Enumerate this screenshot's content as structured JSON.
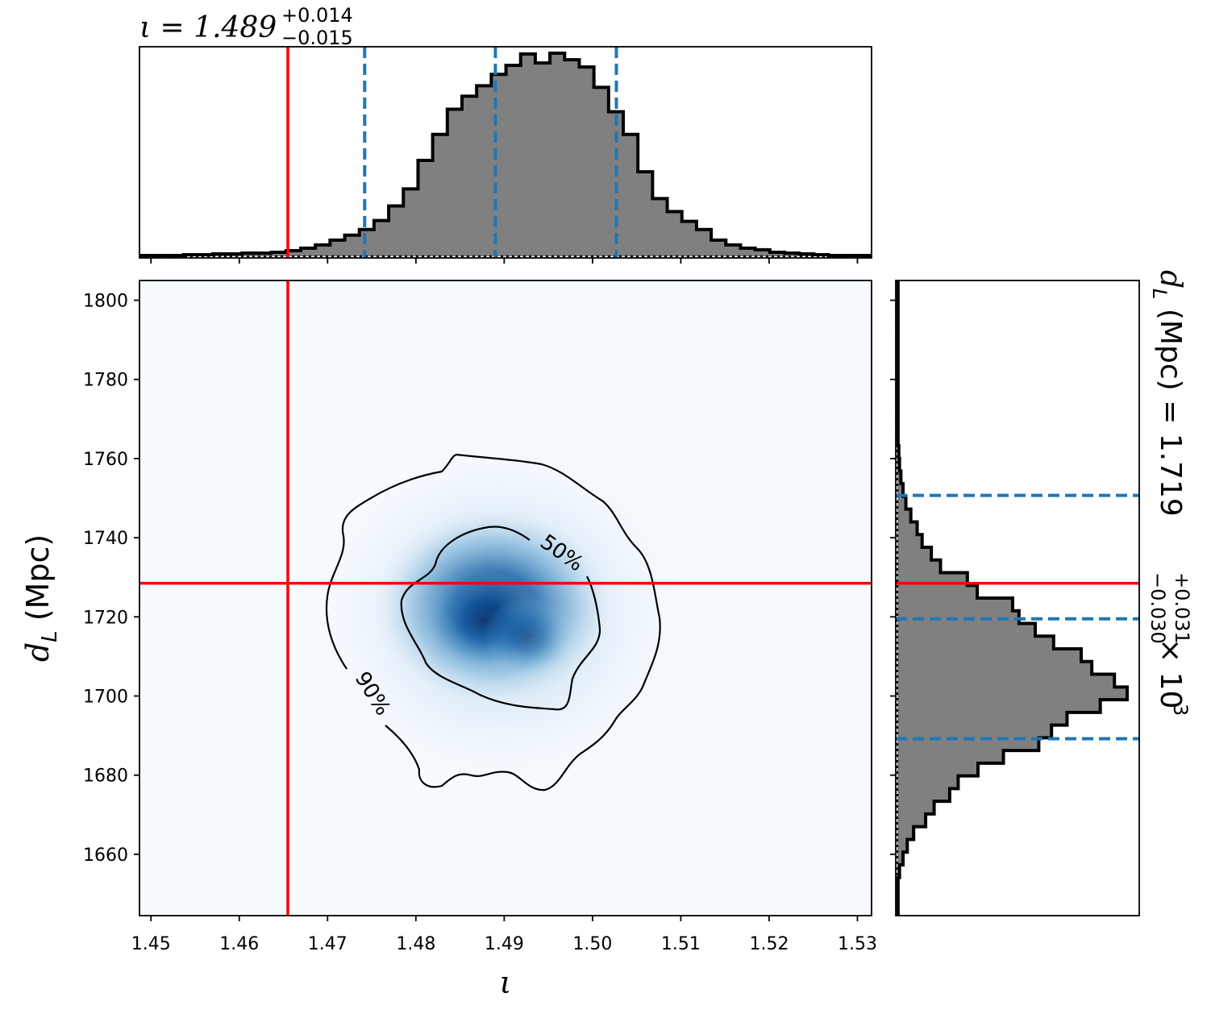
{
  "chart_data": {
    "type": "corner",
    "x": {
      "label": "ι",
      "ticks": [
        "1.45",
        "1.46",
        "1.47",
        "1.48",
        "1.49",
        "1.50",
        "1.51",
        "1.52",
        "1.53"
      ],
      "range": [
        1.4487,
        1.5316
      ],
      "truth": 1.4655,
      "median": 1.489,
      "quantiles": [
        1.4742,
        1.5027
      ],
      "title_prefix": "ι = 1.489",
      "title_sup": "+0.014",
      "title_sub": "−0.015"
    },
    "y": {
      "label_main": "d",
      "label_sub": "L",
      "label_unit": " (Mpc)",
      "ticks": [
        "1660",
        "1680",
        "1700",
        "1720",
        "1740",
        "1760",
        "1780",
        "1800"
      ],
      "range": [
        1644.5,
        1805.0
      ],
      "truth": 1728.5,
      "median": 1719.5,
      "quantiles": [
        1689.2,
        1750.7
      ],
      "title_prefix": "d",
      "title_sub_L": "L",
      "title_mid": " (Mpc) = 1.719",
      "title_sup": "+0.031",
      "title_sub": "−0.030",
      "title_suffix": " × 10",
      "title_exp": "3"
    },
    "hist_x": {
      "edges_start": 1.4487,
      "bin_width": 0.00166,
      "counts": [
        1,
        1,
        1,
        2,
        2,
        3,
        3,
        4,
        4,
        5,
        7,
        10,
        14,
        20,
        26,
        33,
        44,
        62,
        83,
        118,
        150,
        181,
        197,
        210,
        224,
        235,
        249,
        238,
        250,
        242,
        233,
        208,
        178,
        150,
        104,
        71,
        55,
        43,
        33,
        20,
        14,
        10,
        8,
        5,
        4,
        3,
        2,
        1,
        1,
        1
      ]
    },
    "hist_y": {
      "edges_start": 1644.5,
      "bin_width": 3.21,
      "counts": [
        1,
        1,
        1,
        3,
        8,
        14,
        23,
        40,
        52,
        74,
        86,
        114,
        150,
        200,
        218,
        240,
        287,
        325,
        307,
        275,
        260,
        221,
        195,
        172,
        163,
        113,
        99,
        61,
        48,
        35,
        28,
        19,
        12,
        8,
        5,
        3,
        2,
        1,
        1,
        1,
        1,
        1,
        1,
        1,
        1,
        1,
        1,
        1,
        1,
        1
      ]
    },
    "density": {
      "colormap": "Blues",
      "contour_labels": [
        "50%",
        "90%"
      ],
      "levels": [
        0.5,
        0.9
      ]
    },
    "colors": {
      "truth": "#ff0000",
      "quantile": "#1f77b4",
      "hist_fill": "#808080",
      "hist_edge": "#000000"
    }
  }
}
